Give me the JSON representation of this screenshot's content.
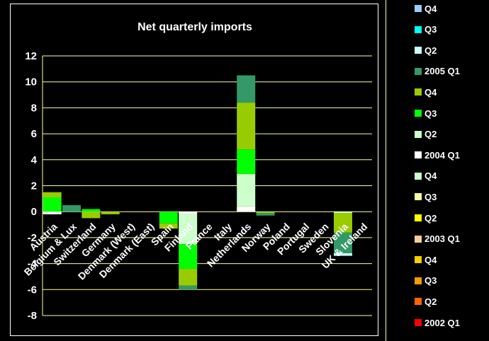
{
  "chart_data": {
    "type": "bar",
    "stacked": true,
    "title": "Net quarterly imports",
    "xlabel": "",
    "ylabel": "",
    "ylim": [
      -8,
      12
    ],
    "yticks": [
      -8,
      -6,
      -4,
      -2,
      0,
      2,
      4,
      6,
      8,
      10,
      12
    ],
    "grid": true,
    "legend_position": "right",
    "categories": [
      "Austria",
      "Belgium & Lux",
      "Switzerland",
      "Germany",
      "Denmark (West)",
      "Denmark (East)",
      "Spain",
      "Finland",
      "France",
      "Italy",
      "Netherlands",
      "Norway",
      "Poland",
      "Portugal",
      "Sweden",
      "Slovenia",
      "UK & Ireland"
    ],
    "series": [
      {
        "name": "2002 Q1",
        "color": "#ff0000",
        "values": [
          0,
          0,
          0,
          0,
          0,
          0,
          0,
          0,
          0,
          0,
          0,
          0,
          0,
          0,
          0,
          0,
          0
        ]
      },
      {
        "name": "Q2",
        "color": "#ff6600",
        "values": [
          0,
          0,
          0,
          0,
          0,
          0,
          0,
          0,
          0,
          0,
          0,
          0,
          0,
          0,
          0,
          0,
          0
        ]
      },
      {
        "name": "Q3",
        "color": "#ff9900",
        "values": [
          0,
          0,
          0,
          0,
          0,
          0,
          0,
          0,
          0,
          0,
          0,
          0,
          0,
          0,
          0,
          0,
          0
        ]
      },
      {
        "name": "Q4",
        "color": "#ffcc00",
        "values": [
          0,
          0,
          0,
          0,
          0,
          0,
          0,
          0,
          0,
          0,
          0,
          0,
          0,
          0,
          0,
          0,
          0
        ]
      },
      {
        "name": "2003 Q1",
        "color": "#ffcc99",
        "values": [
          0,
          0,
          0,
          0,
          0,
          0,
          0,
          0,
          0,
          0,
          0,
          0,
          0,
          0,
          0,
          0,
          0
        ]
      },
      {
        "name": "Q2",
        "color": "#ffff00",
        "values": [
          0,
          0,
          0,
          0,
          0,
          0,
          0,
          0,
          0,
          0,
          0,
          0,
          0,
          0,
          0,
          0,
          0
        ]
      },
      {
        "name": "Q3",
        "color": "#ffff99",
        "values": [
          0,
          0,
          0,
          0,
          0,
          0,
          0,
          0,
          0,
          0,
          0,
          0,
          0,
          0,
          0,
          0,
          0
        ]
      },
      {
        "name": "Q4",
        "color": "#ccffcc",
        "values": [
          0,
          0,
          0,
          0,
          0,
          0,
          0,
          0,
          0,
          0,
          0,
          0,
          0,
          0,
          0,
          0,
          0
        ]
      },
      {
        "name": "2004 Q1",
        "color": "#ffffff",
        "values": [
          -0.2,
          0,
          0,
          0,
          0,
          0,
          0,
          -0.2,
          0,
          0,
          0.4,
          0,
          0,
          0,
          0,
          0,
          0
        ]
      },
      {
        "name": "Q2",
        "color": "#ccffcc",
        "values": [
          0,
          0,
          0,
          0,
          0,
          0,
          0,
          -2.3,
          0,
          0,
          2.5,
          0,
          0,
          0,
          0,
          -0.1,
          0
        ]
      },
      {
        "name": "Q3",
        "color": "#00ff00",
        "values": [
          1.1,
          0,
          0.2,
          0,
          0,
          0,
          -0.9,
          -1.9,
          0,
          0,
          1.9,
          0,
          0,
          0,
          0,
          0,
          0
        ]
      },
      {
        "name": "Q4",
        "color": "#99cc00",
        "values": [
          0.4,
          0,
          -0.5,
          -0.2,
          0,
          0,
          -0.4,
          -1.3,
          0,
          0,
          3.6,
          -0.1,
          0,
          0,
          0,
          -1.5,
          0
        ]
      },
      {
        "name": "2005 Q1",
        "color": "#339966",
        "values": [
          0,
          0.5,
          0,
          0,
          0,
          0,
          0,
          -0.3,
          0,
          0,
          2.1,
          -0.2,
          0,
          0,
          0,
          -1.6,
          0
        ]
      },
      {
        "name": "Q2",
        "color": "#ccffff",
        "values": [
          0,
          0,
          0,
          0,
          0,
          0,
          0,
          0,
          0,
          0,
          0,
          0,
          0,
          0,
          0,
          -0.2,
          0
        ]
      },
      {
        "name": "Q3",
        "color": "#00ffff",
        "values": [
          0,
          0,
          0,
          0,
          0,
          0,
          0,
          0,
          0,
          0,
          0,
          0,
          0,
          0,
          0,
          0,
          0
        ]
      },
      {
        "name": "Q4",
        "color": "#99ccff",
        "values": [
          0,
          0,
          0,
          0,
          0,
          0,
          0,
          0,
          0,
          0,
          0,
          0,
          0,
          0,
          0,
          0,
          0
        ]
      }
    ]
  },
  "colors": {
    "background": "#000000",
    "gridline": "#ffff99",
    "text": "#ffffff"
  }
}
